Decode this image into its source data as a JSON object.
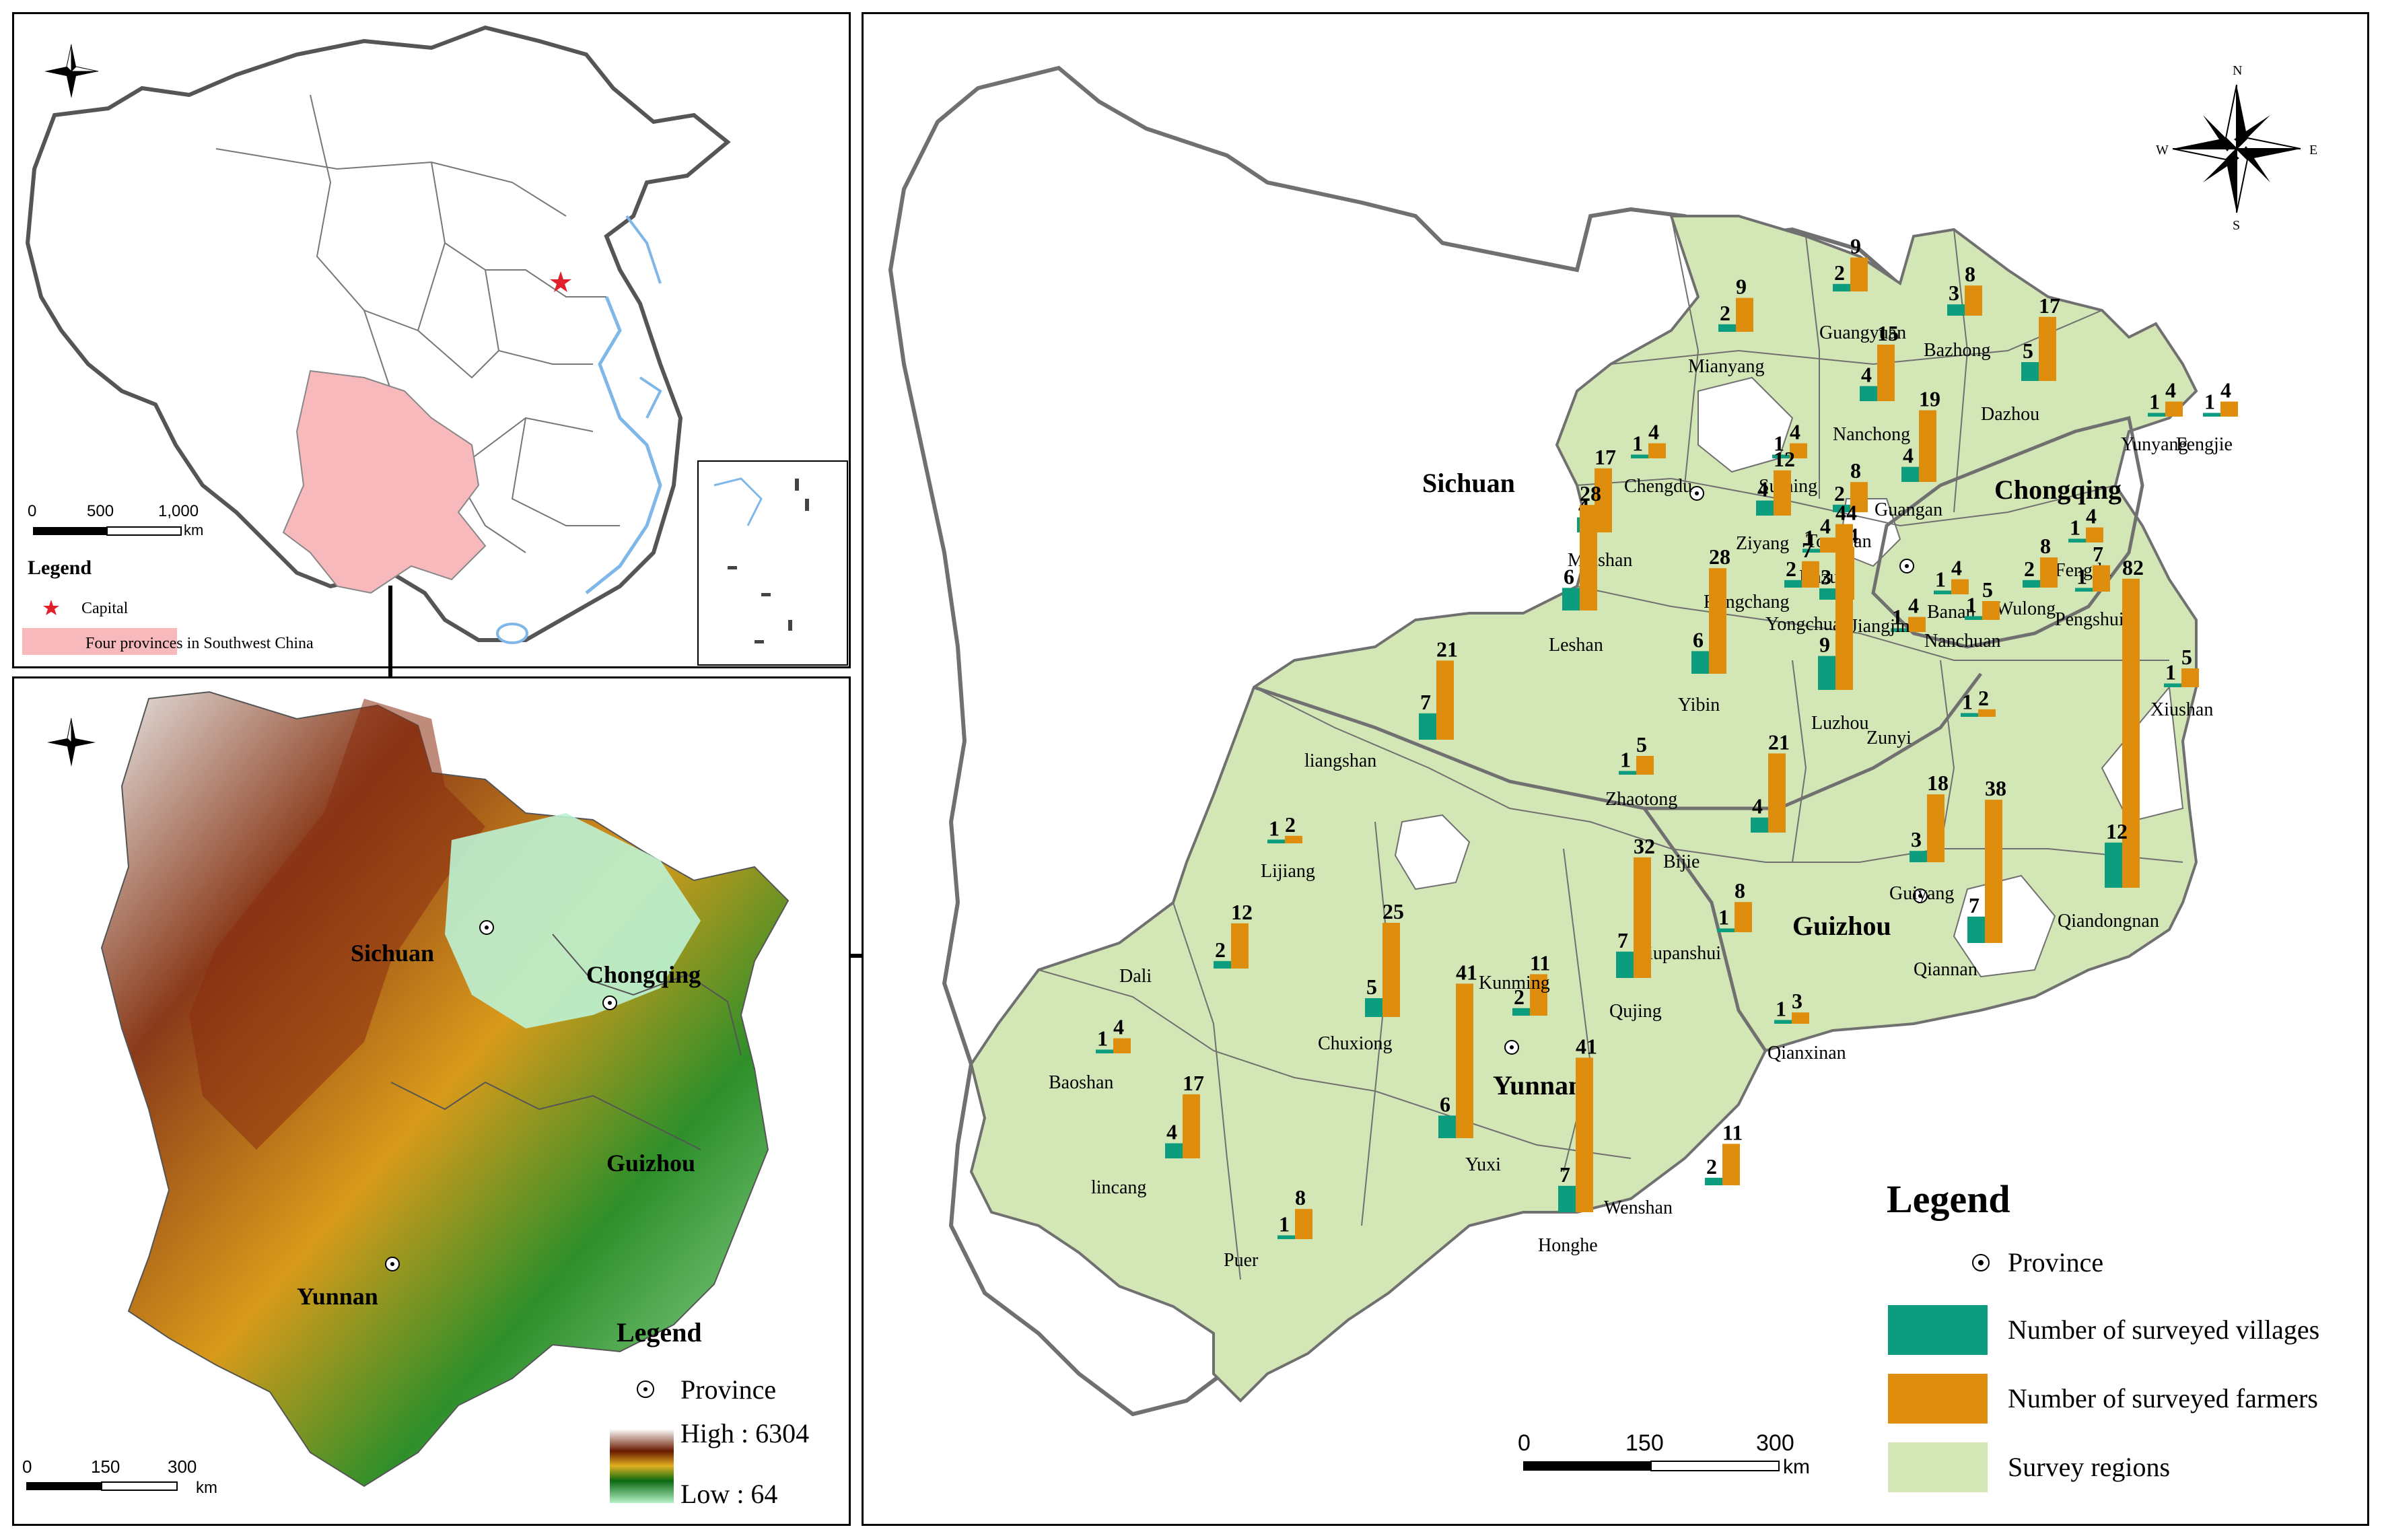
{
  "colors": {
    "survey": "#d3e6b5",
    "villages": "#0c9d7e",
    "farmers": "#de8d0c",
    "china_highlight": "#f7b9bc",
    "water": "#7fb7e8",
    "border": "#707070",
    "elev_high": "#ffffff",
    "elev_mid": "#7a2000",
    "elev_low": "#b5f0c6"
  },
  "panel_china": {
    "scale_labels": [
      "0",
      "500",
      "1,000"
    ],
    "scale_unit": "km",
    "legend_title": "Legend",
    "legend_capital": "Capital",
    "legend_provinces": "Four provinces in Southwest China"
  },
  "panel_elevation": {
    "labels": [
      "Sichuan",
      "Chongqing",
      "Guizhou",
      "Yunnan"
    ],
    "legend_title": "Legend",
    "legend_province": "Province",
    "legend_high": "High : 6304",
    "legend_low": "Low : 64",
    "scale_labels": [
      "0",
      "150",
      "300"
    ],
    "scale_unit": "km"
  },
  "panel_main": {
    "provinces": [
      "Sichuan",
      "Chongqing",
      "Guizhou",
      "Yunnan"
    ],
    "compass": {
      "n": "N",
      "s": "S",
      "e": "E",
      "w": "W"
    },
    "legend_title": "Legend",
    "legend_province": "Province",
    "legend_villages": "Number of surveyed villages",
    "legend_farmers": "Number of surveyed farmers",
    "legend_regions": "Survey regions",
    "scale_labels": [
      "0",
      "150",
      "300"
    ],
    "scale_unit": "km"
  },
  "chart_data": {
    "type": "bar",
    "series": [
      {
        "name": "Number of surveyed villages"
      },
      {
        "name": "Number of surveyed farmers"
      }
    ],
    "regions": [
      {
        "name": "Guangyuan",
        "villages": 2,
        "farmers": 9
      },
      {
        "name": "Mianyang",
        "villages": 2,
        "farmers": 9
      },
      {
        "name": "Bazhong",
        "villages": 3,
        "farmers": 8
      },
      {
        "name": "Dazhou",
        "villages": 5,
        "farmers": 17
      },
      {
        "name": "Nanchong",
        "villages": 4,
        "farmers": 15
      },
      {
        "name": "Yunyang",
        "villages": 1,
        "farmers": 4
      },
      {
        "name": "Fengjie",
        "villages": 1,
        "farmers": 4
      },
      {
        "name": "Chengdu",
        "villages": 1,
        "farmers": 4
      },
      {
        "name": "Suining",
        "villages": 1,
        "farmers": 4
      },
      {
        "name": "Guangan",
        "villages": 4,
        "farmers": 19
      },
      {
        "name": "Meishan",
        "villages": 4,
        "farmers": 17
      },
      {
        "name": "Ziyang",
        "villages": 4,
        "farmers": 12
      },
      {
        "name": "Tongnan",
        "villages": 2,
        "farmers": 8
      },
      {
        "name": "Dazu",
        "villages": 1,
        "farmers": 4
      },
      {
        "name": "Fengdu",
        "villages": 1,
        "farmers": 4
      },
      {
        "name": "Leshan",
        "villages": 6,
        "farmers": 28
      },
      {
        "name": "Rongchang",
        "villages": 2,
        "farmers": 7
      },
      {
        "name": "Yongchuan",
        "villages": 3,
        "farmers": 14
      },
      {
        "name": "Banan",
        "villages": 1,
        "farmers": 4
      },
      {
        "name": "Pengshui",
        "villages": 1,
        "farmers": 7
      },
      {
        "name": "Wulong",
        "villages": 2,
        "farmers": 8
      },
      {
        "name": "Nanchuan",
        "villages": 1,
        "farmers": 5
      },
      {
        "name": "Jiangjin",
        "villages": 1,
        "farmers": 4
      },
      {
        "name": "Yibin",
        "villages": 6,
        "farmers": 28
      },
      {
        "name": "Luzhou",
        "villages": 9,
        "farmers": 44
      },
      {
        "name": "Xiushan",
        "villages": 1,
        "farmers": 5
      },
      {
        "name": "liangshan",
        "villages": 7,
        "farmers": 21
      },
      {
        "name": "Zunyi",
        "villages": 1,
        "farmers": 2
      },
      {
        "name": "Zhaotong",
        "villages": 1,
        "farmers": 5
      },
      {
        "name": "Bijie",
        "villages": 4,
        "farmers": 21
      },
      {
        "name": "Qiandongnan",
        "villages": 12,
        "farmers": 82
      },
      {
        "name": "Lijiang",
        "villages": 1,
        "farmers": 2
      },
      {
        "name": "Guiyang",
        "villages": 3,
        "farmers": 18
      },
      {
        "name": "Qiannan",
        "villages": 7,
        "farmers": 38
      },
      {
        "name": "Liupanshui",
        "villages": 1,
        "farmers": 8
      },
      {
        "name": "Dali",
        "villages": 2,
        "farmers": 12
      },
      {
        "name": "Chuxiong",
        "villages": 5,
        "farmers": 25
      },
      {
        "name": "Kunming",
        "villages": 2,
        "farmers": 11
      },
      {
        "name": "Qujing",
        "villages": 7,
        "farmers": 32
      },
      {
        "name": "Qianxinan",
        "villages": 1,
        "farmers": 3
      },
      {
        "name": "Baoshan",
        "villages": 1,
        "farmers": 4
      },
      {
        "name": "Yuxi",
        "villages": 6,
        "farmers": 41
      },
      {
        "name": "lincang",
        "villages": 4,
        "farmers": 17
      },
      {
        "name": "Honghe",
        "villages": 7,
        "farmers": 41
      },
      {
        "name": "Wenshan",
        "villages": 2,
        "farmers": 11
      },
      {
        "name": "Puer",
        "villages": 1,
        "farmers": 8
      }
    ]
  }
}
